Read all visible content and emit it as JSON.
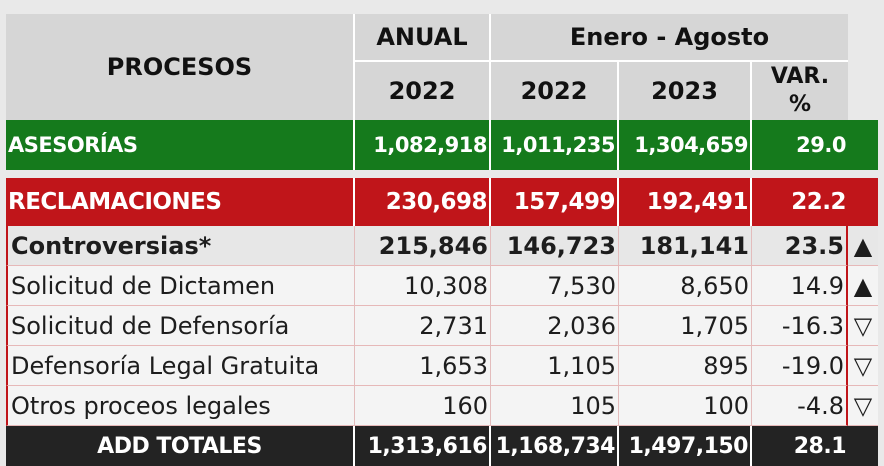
{
  "header": {
    "procesos": "PROCESOS",
    "anual": "ANUAL",
    "periodo": "Enero - Agosto",
    "y2022_anual": "2022",
    "y2022": "2022",
    "y2023": "2023",
    "var": "VAR.\n%"
  },
  "rows": {
    "asesorias": {
      "name": "ASESORÍAS",
      "anual_2022": "1,082,918",
      "ea_2022": "1,011,235",
      "ea_2023": "1,304,659",
      "var": "29.0"
    },
    "reclamaciones": {
      "name": "RECLAMACIONES",
      "anual_2022": "230,698",
      "ea_2022": "157,499",
      "ea_2023": "192,491",
      "var": "22.2"
    },
    "controversias": {
      "name": "Controversias*",
      "anual_2022": "215,846",
      "ea_2022": "146,723",
      "ea_2023": "181,141",
      "var": "23.5",
      "trend": "up"
    },
    "dictamen": {
      "name": "Solicitud de Dictamen",
      "anual_2022": "10,308",
      "ea_2022": "7,530",
      "ea_2023": "8,650",
      "var": "14.9",
      "trend": "up"
    },
    "defensoria": {
      "name": "Solicitud de Defensoría",
      "anual_2022": "2,731",
      "ea_2022": "2,036",
      "ea_2023": "1,705",
      "var": "-16.3",
      "trend": "down"
    },
    "gratuita": {
      "name": "Defensoría Legal Gratuita",
      "anual_2022": "1,653",
      "ea_2022": "1,105",
      "ea_2023": "895",
      "var": "-19.0",
      "trend": "down"
    },
    "otros": {
      "name": "Otros proceos legales",
      "anual_2022": "160",
      "ea_2022": "105",
      "ea_2023": "100",
      "var": "-4.8",
      "trend": "down"
    },
    "totales": {
      "name": "ADD TOTALES",
      "anual_2022": "1,313,616",
      "ea_2022": "1,168,734",
      "ea_2023": "1,497,150",
      "var": "28.1"
    }
  },
  "icons": {
    "up": "▲",
    "down": "▽"
  },
  "colors": {
    "green": "#157a1c",
    "red": "#c0151a",
    "dark": "#232323",
    "header": "#d6d6d6"
  }
}
